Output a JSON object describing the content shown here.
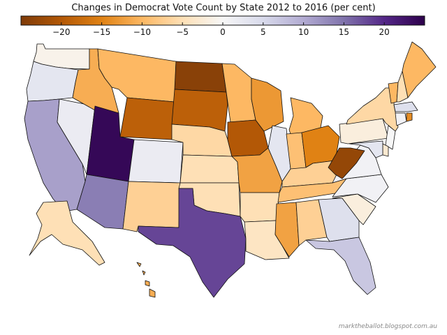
{
  "title": "Changes in Democrat Vote Count by State 2012 to 2016 (per cent)",
  "credit": "marktheballot.blogspot.com.au",
  "colorbar": {
    "min": -25,
    "max": 25,
    "ticks": [
      "−20",
      "−15",
      "−10",
      "−5",
      "0",
      "5",
      "10",
      "15",
      "20"
    ],
    "tick_values": [
      -20,
      -15,
      -10,
      -5,
      0,
      5,
      10,
      15,
      20
    ],
    "colormap": "PuOr",
    "stops": [
      "#7f3b08",
      "#b35806",
      "#e08214",
      "#fdb863",
      "#fee0b6",
      "#f7f7f7",
      "#d8daeb",
      "#b2abd2",
      "#8073ac",
      "#542788",
      "#2d004b"
    ]
  },
  "states": [
    {
      "id": "WA",
      "value": -1
    },
    {
      "id": "OR",
      "value": 3
    },
    {
      "id": "CA",
      "value": 11
    },
    {
      "id": "NV",
      "value": 2
    },
    {
      "id": "ID",
      "value": -11
    },
    {
      "id": "MT",
      "value": -10
    },
    {
      "id": "WY",
      "value": -19
    },
    {
      "id": "UT",
      "value": 24
    },
    {
      "id": "AZ",
      "value": 14
    },
    {
      "id": "CO",
      "value": 2
    },
    {
      "id": "NM",
      "value": -7
    },
    {
      "id": "ND",
      "value": -24
    },
    {
      "id": "SD",
      "value": -19
    },
    {
      "id": "NE",
      "value": -6
    },
    {
      "id": "KS",
      "value": -5
    },
    {
      "id": "OK",
      "value": -5
    },
    {
      "id": "TX",
      "value": 18
    },
    {
      "id": "MN",
      "value": -10
    },
    {
      "id": "IA",
      "value": -20
    },
    {
      "id": "MO",
      "value": -12
    },
    {
      "id": "AR",
      "value": -5
    },
    {
      "id": "LA",
      "value": -4
    },
    {
      "id": "WI",
      "value": -13
    },
    {
      "id": "IL",
      "value": 3
    },
    {
      "id": "MI",
      "value": -10
    },
    {
      "id": "IN",
      "value": -9
    },
    {
      "id": "OH",
      "value": -15
    },
    {
      "id": "KY",
      "value": -7
    },
    {
      "id": "TN",
      "value": -9
    },
    {
      "id": "MS",
      "value": -12
    },
    {
      "id": "AL",
      "value": -7
    },
    {
      "id": "GA",
      "value": 4
    },
    {
      "id": "FL",
      "value": 7
    },
    {
      "id": "SC",
      "value": -2
    },
    {
      "id": "NC",
      "value": 1
    },
    {
      "id": "VA",
      "value": 1
    },
    {
      "id": "WV",
      "value": -23
    },
    {
      "id": "PA",
      "value": -2
    },
    {
      "id": "NY",
      "value": -6
    },
    {
      "id": "VT",
      "value": -10
    },
    {
      "id": "NH",
      "value": -5
    },
    {
      "id": "ME",
      "value": -10
    },
    {
      "id": "MA",
      "value": 4
    },
    {
      "id": "CT",
      "value": 1
    },
    {
      "id": "NJ",
      "value": 0
    },
    {
      "id": "DE",
      "value": -3
    },
    {
      "id": "MD",
      "value": 3
    },
    {
      "id": "RI",
      "value": -14
    },
    {
      "id": "AK",
      "value": -5
    },
    {
      "id": "HI",
      "value": -11
    }
  ]
}
